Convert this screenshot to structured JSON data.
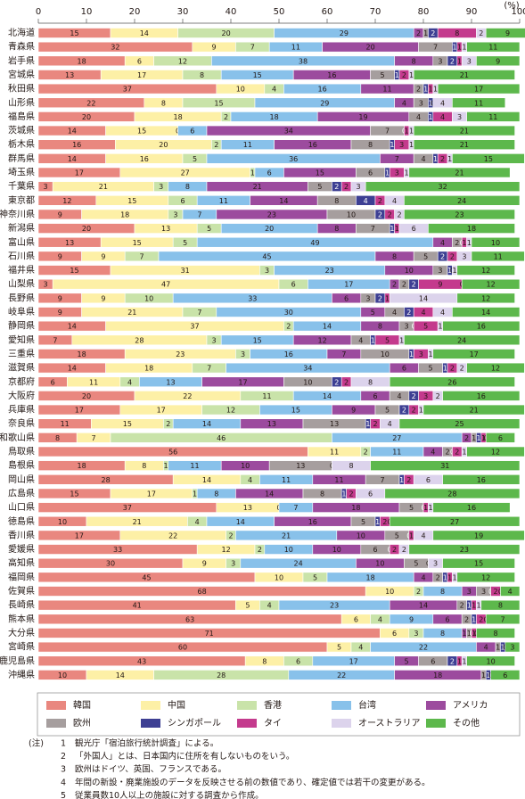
{
  "chart_data": {
    "type": "stacked-barh",
    "xlabel": "(%)",
    "categories": [
      "北海道",
      "青森県",
      "岩手県",
      "宮城県",
      "秋田県",
      "山形県",
      "福島県",
      "茨城県",
      "栃木県",
      "群馬県",
      "埼玉県",
      "千葉県",
      "東京都",
      "神奈川県",
      "新潟県",
      "富山県",
      "石川県",
      "福井県",
      "山梨県",
      "長野県",
      "岐阜県",
      "静岡県",
      "愛知県",
      "三重県",
      "滋賀県",
      "京都府",
      "大阪府",
      "兵庫県",
      "奈良県",
      "和歌山県",
      "鳥取県",
      "島根県",
      "岡山県",
      "広島県",
      "山口県",
      "徳島県",
      "香川県",
      "愛媛県",
      "高知県",
      "福岡県",
      "佐賀県",
      "長崎県",
      "熊本県",
      "大分県",
      "宮崎県",
      "鹿児島県",
      "沖縄県"
    ],
    "xlim": [
      0,
      100
    ],
    "xticks": [
      0,
      10,
      20,
      30,
      40,
      50,
      60,
      70,
      80,
      90,
      100
    ],
    "series": [
      {
        "name": "韓国",
        "color": "#e9877f",
        "values": [
          15,
          32,
          18,
          13,
          37,
          22,
          20,
          14,
          16,
          14,
          17,
          3,
          12,
          9,
          20,
          13,
          9,
          15,
          3,
          9,
          9,
          14,
          7,
          18,
          14,
          6,
          20,
          17,
          11,
          8,
          56,
          18,
          28,
          15,
          37,
          10,
          17,
          33,
          30,
          45,
          68,
          41,
          63,
          71,
          60,
          43,
          10
        ]
      },
      {
        "name": "中国",
        "color": "#fdf0a6",
        "values": [
          14,
          9,
          6,
          17,
          10,
          8,
          18,
          15,
          20,
          16,
          27,
          21,
          15,
          18,
          13,
          15,
          9,
          31,
          47,
          9,
          21,
          37,
          28,
          23,
          18,
          11,
          22,
          17,
          15,
          7,
          11,
          8,
          14,
          17,
          13,
          21,
          22,
          12,
          9,
          10,
          10,
          5,
          6,
          6,
          5,
          8,
          14
        ]
      },
      {
        "name": "香港",
        "color": "#c9e3a9",
        "values": [
          20,
          7,
          12,
          8,
          4,
          15,
          2,
          0,
          2,
          5,
          1,
          3,
          6,
          3,
          5,
          5,
          7,
          3,
          6,
          10,
          7,
          2,
          3,
          3,
          7,
          4,
          11,
          12,
          2,
          46,
          2,
          1,
          4,
          1,
          0,
          4,
          2,
          2,
          3,
          5,
          2,
          4,
          4,
          3,
          4,
          6,
          28
        ]
      },
      {
        "name": "台湾",
        "color": "#88c1ea",
        "values": [
          29,
          11,
          38,
          15,
          16,
          29,
          18,
          6,
          11,
          36,
          6,
          8,
          11,
          7,
          20,
          49,
          45,
          23,
          17,
          33,
          30,
          14,
          15,
          16,
          34,
          13,
          14,
          15,
          14,
          27,
          11,
          11,
          11,
          8,
          7,
          14,
          21,
          10,
          24,
          18,
          8,
          23,
          9,
          8,
          22,
          17,
          22
        ]
      },
      {
        "name": "アメリカ",
        "color": "#9c4b9e",
        "values": [
          2,
          20,
          8,
          16,
          11,
          4,
          19,
          34,
          16,
          7,
          15,
          21,
          14,
          23,
          8,
          4,
          8,
          10,
          2,
          6,
          5,
          8,
          12,
          7,
          6,
          17,
          6,
          9,
          13,
          2,
          4,
          10,
          11,
          14,
          18,
          16,
          10,
          10,
          10,
          4,
          3,
          14,
          6,
          1,
          4,
          5,
          18
        ]
      },
      {
        "name": "欧州",
        "color": "#a69e9e",
        "values": [
          1,
          7,
          3,
          5,
          2,
          3,
          4,
          7,
          8,
          4,
          6,
          5,
          8,
          10,
          7,
          2,
          5,
          3,
          2,
          3,
          4,
          3,
          4,
          10,
          5,
          10,
          4,
          5,
          13,
          1,
          2,
          13,
          7,
          8,
          5,
          5,
          5,
          6,
          5,
          2,
          3,
          2,
          2,
          1,
          1,
          6,
          1
        ]
      },
      {
        "name": "シンガポール",
        "color": "#3d3f93",
        "values": [
          2,
          1,
          2,
          1,
          1,
          1,
          1,
          0,
          1,
          1,
          1,
          2,
          4,
          2,
          1,
          0,
          2,
          1,
          2,
          2,
          2,
          0,
          1,
          1,
          1,
          2,
          2,
          2,
          1,
          1,
          0,
          0,
          1,
          1,
          0,
          1,
          0,
          0,
          0,
          1,
          0,
          1,
          1,
          0,
          1,
          2,
          1
        ]
      },
      {
        "name": "タイ",
        "color": "#c43a8d",
        "values": [
          8,
          1,
          1,
          2,
          1,
          0,
          4,
          1,
          3,
          2,
          3,
          2,
          2,
          2,
          1,
          1,
          2,
          0,
          9,
          1,
          4,
          5,
          5,
          3,
          2,
          2,
          3,
          2,
          2,
          1,
          2,
          0,
          2,
          2,
          1,
          2,
          1,
          2,
          0,
          1,
          2,
          1,
          2,
          1,
          0,
          1,
          0
        ]
      },
      {
        "name": "オーストラリア",
        "color": "#dcd3ec",
        "values": [
          2,
          1,
          3,
          1,
          1,
          4,
          3,
          1,
          1,
          1,
          1,
          3,
          4,
          2,
          6,
          1,
          3,
          1,
          0,
          14,
          4,
          1,
          1,
          1,
          2,
          8,
          2,
          1,
          4,
          0,
          1,
          8,
          6,
          6,
          1,
          0,
          4,
          2,
          3,
          1,
          0,
          1,
          0,
          0,
          0,
          1,
          0
        ]
      },
      {
        "name": "その他",
        "color": "#5db84c",
        "values": [
          9,
          11,
          9,
          21,
          17,
          11,
          11,
          21,
          21,
          15,
          21,
          32,
          24,
          23,
          18,
          10,
          11,
          12,
          12,
          12,
          14,
          16,
          24,
          17,
          12,
          26,
          16,
          21,
          25,
          6,
          12,
          31,
          16,
          28,
          16,
          27,
          19,
          23,
          15,
          12,
          4,
          8,
          7,
          8,
          3,
          10,
          6
        ]
      }
    ]
  },
  "notes": {
    "label": "(注)",
    "items": [
      {
        "number": "1",
        "text": "観光庁「宿泊旅行統計調査」による。"
      },
      {
        "number": "2",
        "text": "「外国人」とは、日本国内に住所を有しないものをいう。"
      },
      {
        "number": "3",
        "text": "欧州はドイツ、英国、フランスである。"
      },
      {
        "number": "4",
        "text": "年間の新設・廃業施設のデータを反映させる前の数値であり、確定値では若干の変更がある。"
      },
      {
        "number": "5",
        "text": "従業員数10人以上の施設に対する調査から作成。"
      }
    ]
  }
}
